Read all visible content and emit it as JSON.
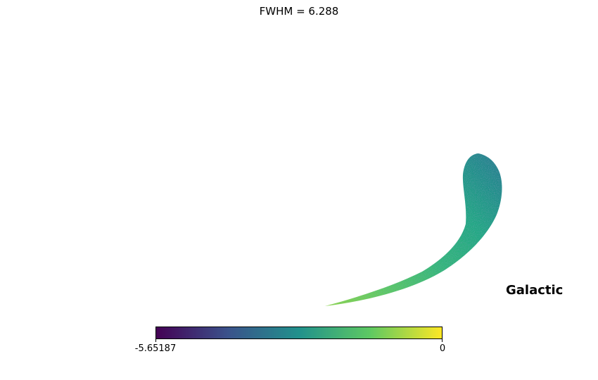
{
  "chart_data": {
    "type": "heatmap",
    "projection": "mollweide",
    "title": "FWHM = 6.288",
    "coord_label": "Galactic",
    "colormap": "viridis",
    "colorbar": {
      "min": -5.65187,
      "max": 0,
      "tick_labels": [
        "-5.65187",
        "0"
      ],
      "orientation": "horizontal"
    },
    "colors": {
      "viridis_0": "#440154",
      "viridis_25": "#3b528b",
      "viridis_50": "#21918c",
      "viridis_75": "#5ec962",
      "viridis_100": "#fde725"
    }
  }
}
